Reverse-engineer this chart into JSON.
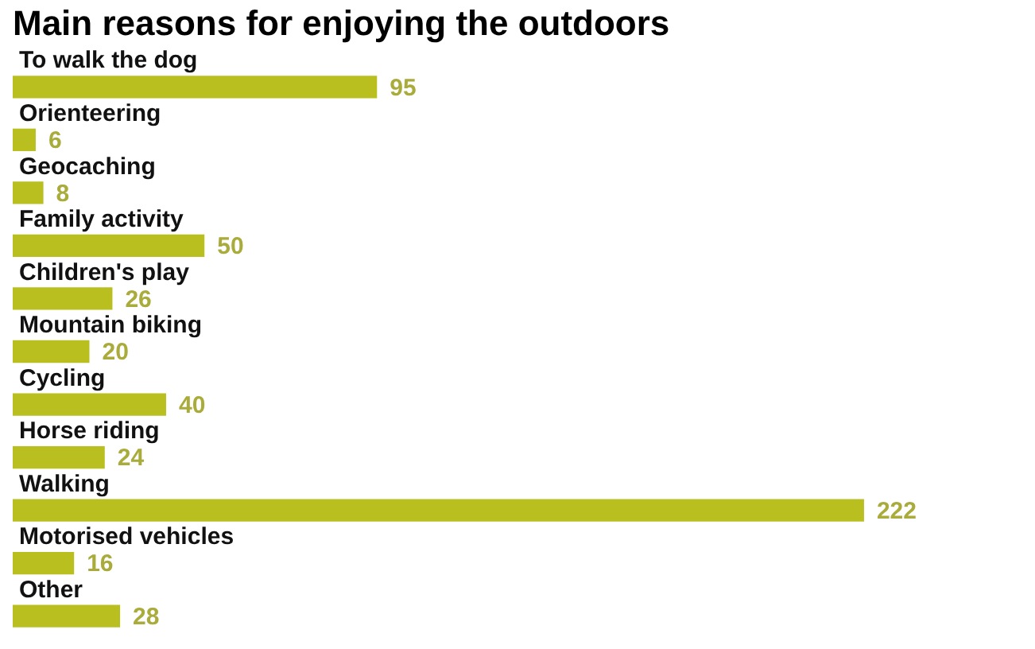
{
  "chart_data": {
    "type": "bar",
    "orientation": "horizontal",
    "title": "Main reasons for enjoying the outdoors",
    "categories": [
      "To walk the dog",
      "Orienteering",
      "Geocaching",
      "Family activity",
      "Children's play",
      "Mountain biking",
      "Cycling",
      "Horse riding",
      "Walking",
      "Motorised vehicles",
      "Other"
    ],
    "values": [
      95,
      6,
      8,
      50,
      26,
      20,
      40,
      24,
      222,
      16,
      28
    ],
    "color": "#b8bf1f",
    "data_labels": true,
    "legend": false,
    "tick_labels": false
  }
}
